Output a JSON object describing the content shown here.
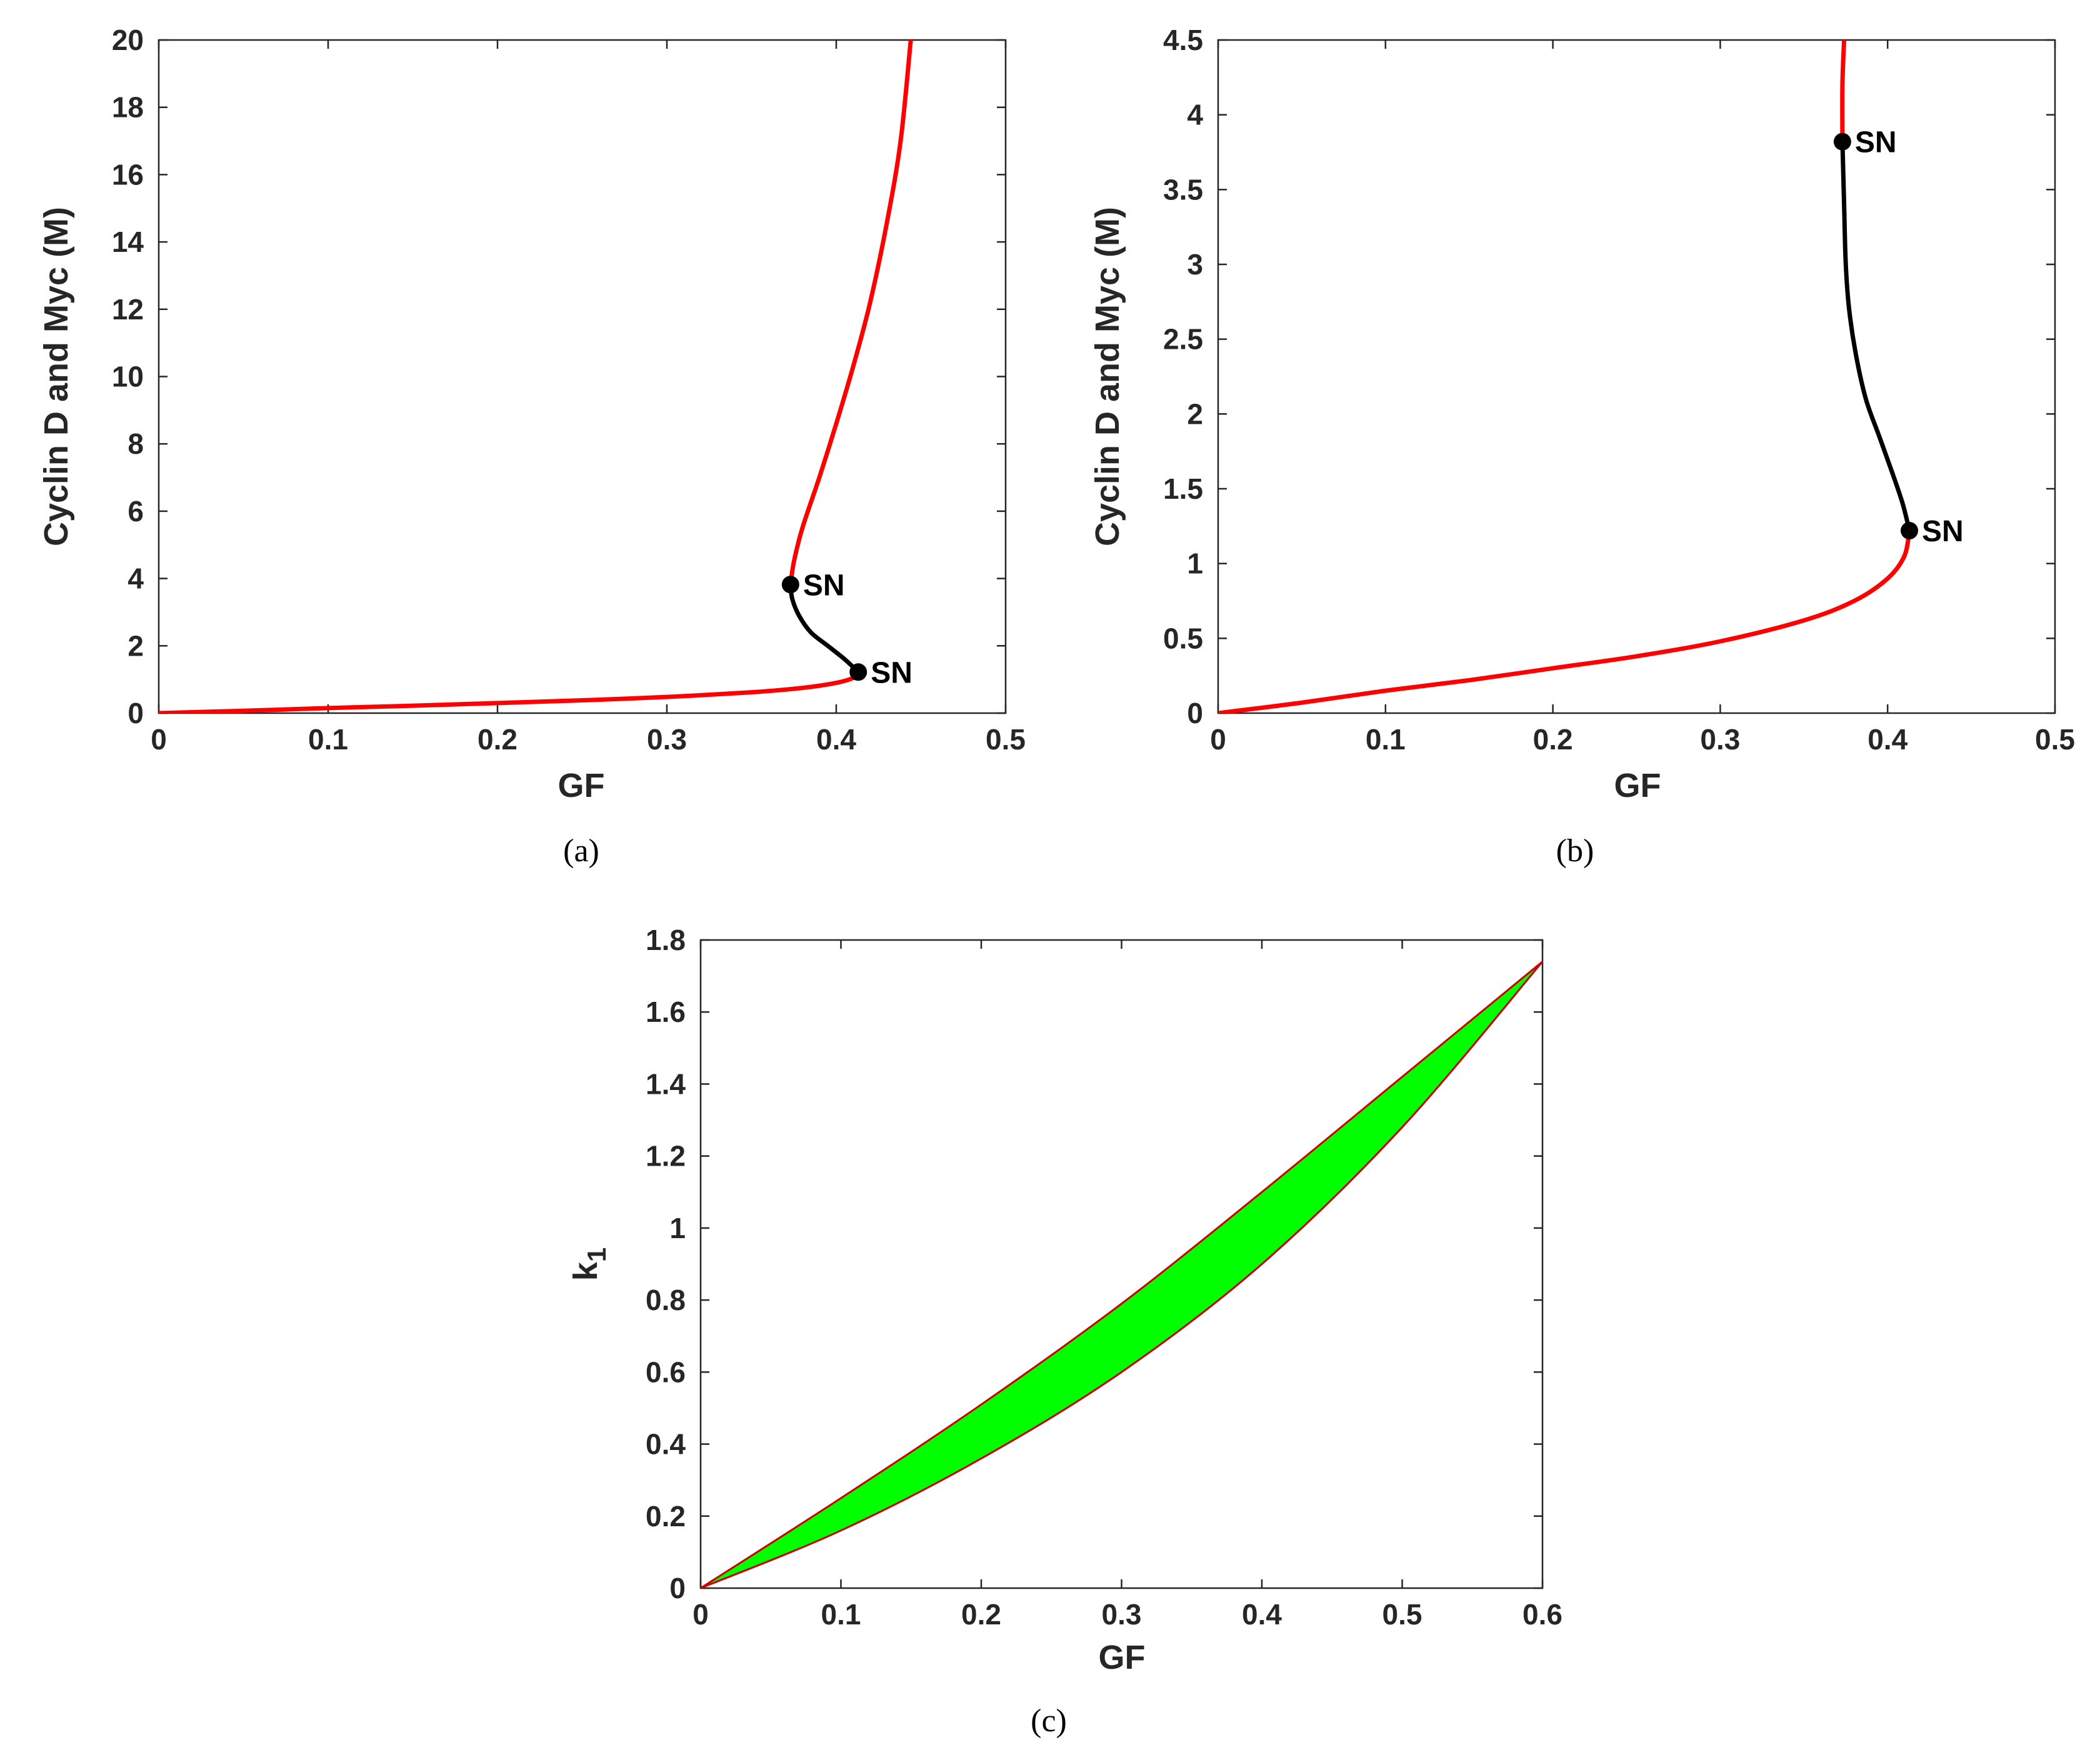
{
  "colors": {
    "stable_branch": "#ff0000",
    "unstable_branch": "#000000",
    "bistable_region": "#00ff00",
    "boundary": "#cc0000",
    "axes": "#262626"
  },
  "chart_data": [
    {
      "id": "a",
      "panel_label": "(a)",
      "type": "line",
      "xlabel": "GF",
      "ylabel": "Cyclin D and Myc (M)",
      "xlim": [
        0,
        0.5
      ],
      "ylim": [
        0,
        20
      ],
      "xticks": [
        "0",
        "0.1",
        "0.2",
        "0.3",
        "0.4",
        "0.5"
      ],
      "yticks": [
        "0",
        "2",
        "4",
        "6",
        "8",
        "10",
        "12",
        "14",
        "16",
        "18",
        "20"
      ],
      "series": [
        {
          "style": "stable",
          "x": [
            0,
            0.05,
            0.1,
            0.15,
            0.2,
            0.25,
            0.3,
            0.35,
            0.38,
            0.4,
            0.41,
            0.413
          ],
          "y": [
            0,
            0.07,
            0.15,
            0.22,
            0.3,
            0.38,
            0.48,
            0.62,
            0.75,
            0.9,
            1.05,
            1.22
          ]
        },
        {
          "style": "unstable",
          "x": [
            0.413,
            0.405,
            0.395,
            0.385,
            0.378,
            0.374,
            0.373
          ],
          "y": [
            1.22,
            1.6,
            2.0,
            2.4,
            2.9,
            3.4,
            3.82
          ]
        },
        {
          "style": "stable",
          "x": [
            0.373,
            0.375,
            0.38,
            0.39,
            0.4,
            0.41,
            0.42,
            0.43,
            0.438,
            0.444
          ],
          "y": [
            3.82,
            4.5,
            5.5,
            7.0,
            8.6,
            10.3,
            12.2,
            14.6,
            17.0,
            20.0
          ]
        }
      ],
      "points": [
        {
          "label": "SN",
          "x": 0.373,
          "y": 3.82
        },
        {
          "label": "SN",
          "x": 0.413,
          "y": 1.22
        }
      ]
    },
    {
      "id": "b",
      "panel_label": "(b)",
      "type": "line",
      "xlabel": "GF",
      "ylabel": "Cyclin D and Myc (M)",
      "xlim": [
        0,
        0.5
      ],
      "ylim": [
        0,
        4.5
      ],
      "xticks": [
        "0",
        "0.1",
        "0.2",
        "0.3",
        "0.4",
        "0.5"
      ],
      "yticks": [
        "0",
        "0.5",
        "1",
        "1.5",
        "2",
        "2.5",
        "3",
        "3.5",
        "4",
        "4.5"
      ],
      "series": [
        {
          "style": "stable",
          "x": [
            0,
            0.05,
            0.1,
            0.15,
            0.2,
            0.25,
            0.3,
            0.35,
            0.38,
            0.4,
            0.41,
            0.413
          ],
          "y": [
            0,
            0.07,
            0.15,
            0.22,
            0.3,
            0.38,
            0.48,
            0.62,
            0.75,
            0.9,
            1.05,
            1.22
          ]
        },
        {
          "style": "unstable",
          "x": [
            0.413,
            0.409,
            0.403,
            0.395,
            0.387,
            0.381,
            0.377,
            0.375,
            0.374,
            0.373
          ],
          "y": [
            1.22,
            1.4,
            1.6,
            1.85,
            2.1,
            2.4,
            2.7,
            3.0,
            3.4,
            3.82
          ]
        },
        {
          "style": "stable",
          "x": [
            0.373,
            0.373,
            0.374
          ],
          "y": [
            3.82,
            4.2,
            4.5
          ]
        }
      ],
      "points": [
        {
          "label": "SN",
          "x": 0.373,
          "y": 3.82
        },
        {
          "label": "SN",
          "x": 0.413,
          "y": 1.22
        }
      ]
    },
    {
      "id": "c",
      "panel_label": "(c)",
      "type": "area",
      "xlabel": "GF",
      "ylabel": "k1",
      "ylabel_main": "k",
      "ylabel_sub": "1",
      "xlim": [
        0,
        0.6
      ],
      "ylim": [
        0,
        1.8
      ],
      "xticks": [
        "0",
        "0.1",
        "0.2",
        "0.3",
        "0.4",
        "0.5",
        "0.6"
      ],
      "yticks": [
        "0",
        "0.2",
        "0.4",
        "0.6",
        "0.8",
        "1",
        "1.2",
        "1.4",
        "1.6",
        "1.8"
      ],
      "upper": {
        "x": [
          0,
          0.1,
          0.2,
          0.3,
          0.4,
          0.5,
          0.6
        ],
        "y": [
          0,
          0.25,
          0.51,
          0.79,
          1.1,
          1.42,
          1.74
        ]
      },
      "lower": {
        "x": [
          0,
          0.1,
          0.2,
          0.3,
          0.4,
          0.5,
          0.6
        ],
        "y": [
          0,
          0.16,
          0.36,
          0.6,
          0.9,
          1.28,
          1.74
        ]
      }
    }
  ]
}
